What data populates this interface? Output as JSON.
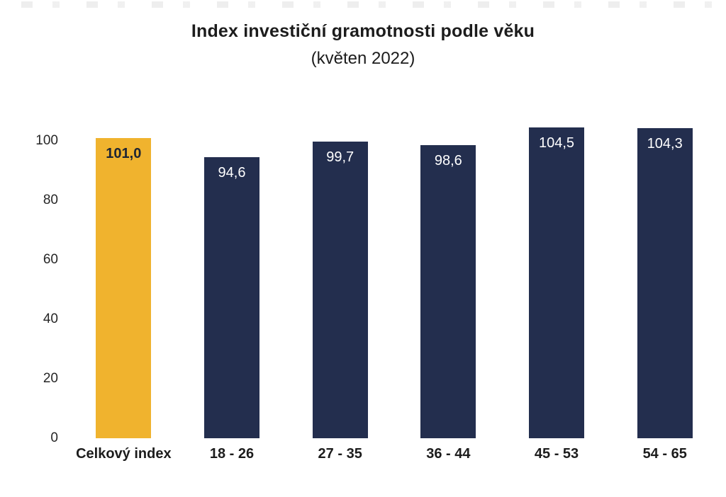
{
  "title": "Index investiční gramotnosti podle věku",
  "subtitle": "(květen 2022)",
  "chart_data": {
    "type": "bar",
    "title": "Index investiční gramotnosti podle věku",
    "subtitle": "(květen 2022)",
    "categories": [
      "Celkový index",
      "18 - 26",
      "27 - 35",
      "36 - 44",
      "45 - 53",
      "54 - 65"
    ],
    "values": [
      101.0,
      94.6,
      99.7,
      98.6,
      104.5,
      104.3
    ],
    "value_labels": [
      "101,0",
      "94,6",
      "99,7",
      "98,6",
      "104,5",
      "104,3"
    ],
    "highlight_index": 0,
    "xlabel": "",
    "ylabel": "",
    "y_ticks": [
      100,
      80,
      60,
      40,
      20,
      0
    ],
    "ylim": [
      0,
      105
    ],
    "grid": false,
    "legend_position": "none"
  },
  "colors": {
    "highlight_bar": "#F0B32E",
    "bar": "#232E4E",
    "highlight_value_text": "#1E2533",
    "value_text": "#FFFFFF",
    "axis_text": "#262626",
    "title_text": "#1C1C1C",
    "background": "#FFFFFF"
  }
}
